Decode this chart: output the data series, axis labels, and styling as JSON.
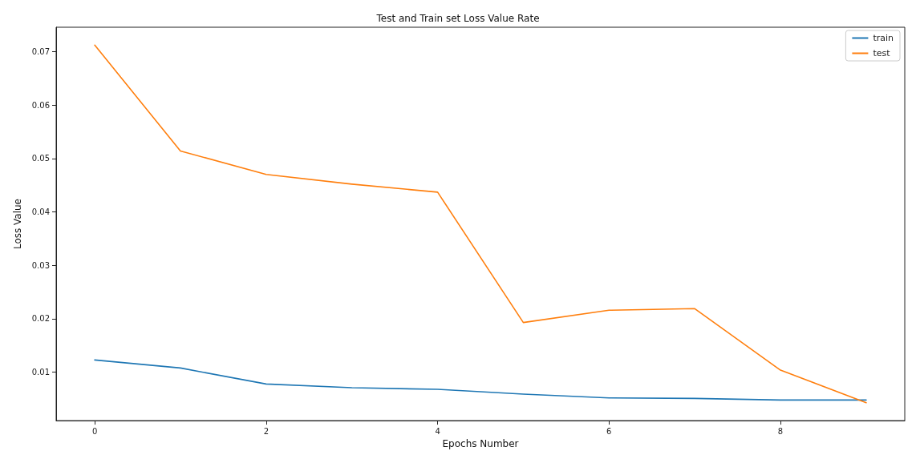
{
  "chart_data": {
    "type": "line",
    "title": "Test and Train set Loss Value Rate",
    "xlabel": "Epochs Number",
    "ylabel": "Loss Value",
    "x": [
      0,
      1,
      2,
      3,
      4,
      5,
      6,
      7,
      8,
      9
    ],
    "series": [
      {
        "name": "train",
        "color": "#1f77b4",
        "values": [
          0.0123,
          0.0108,
          0.0078,
          0.0071,
          0.0068,
          0.0059,
          0.0052,
          0.0051,
          0.0048,
          0.0048
        ]
      },
      {
        "name": "test",
        "color": "#ff7f0e",
        "values": [
          0.0712,
          0.0514,
          0.047,
          0.0452,
          0.0437,
          0.0193,
          0.0216,
          0.0219,
          0.0104,
          0.0043
        ]
      }
    ],
    "xlim": [
      -0.45,
      9.45
    ],
    "xticks": [
      0,
      2,
      4,
      6,
      8
    ],
    "ylim": [
      0.00095,
      0.07455
    ],
    "yticks": [
      0.01,
      0.02,
      0.03,
      0.04,
      0.05,
      0.06,
      0.07
    ],
    "grid": false,
    "legend": "top right",
    "marker": "none",
    "line_style": "solid"
  }
}
